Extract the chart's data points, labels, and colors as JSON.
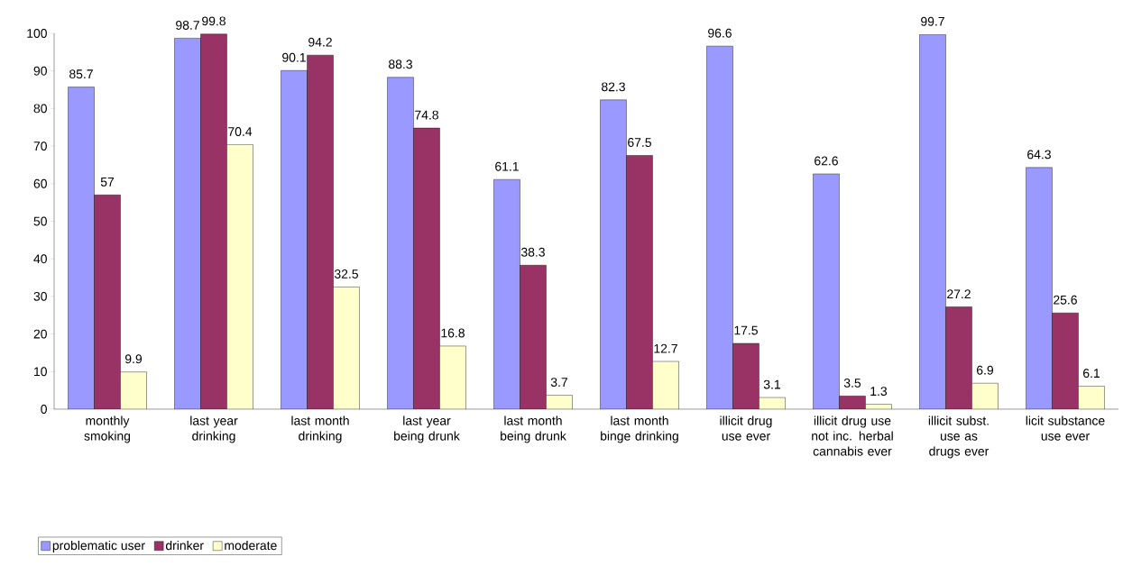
{
  "chart_data": {
    "type": "bar",
    "categories": [
      "monthly smoking",
      "last year drinking",
      "last month drinking",
      "last year being drunk",
      "last month being drunk",
      "last month binge drinking",
      "illicit drug use ever",
      "illicit drug use not inc. herbal cannabis ever",
      "illicit subst. use as drugs ever",
      "licit substance use ever"
    ],
    "series": [
      {
        "name": "problematic user",
        "color": "#9999ff",
        "values": [
          85.7,
          98.7,
          90.1,
          88.3,
          61.1,
          82.3,
          96.6,
          62.6,
          99.7,
          64.3
        ]
      },
      {
        "name": "drinker",
        "color": "#993366",
        "values": [
          57,
          99.8,
          94.2,
          74.8,
          38.3,
          67.5,
          17.5,
          3.5,
          27.2,
          25.6
        ]
      },
      {
        "name": "moderate",
        "color": "#ffffcc",
        "values": [
          9.9,
          70.4,
          32.5,
          16.8,
          3.7,
          12.7,
          3.1,
          1.3,
          6.9,
          6.1
        ]
      }
    ],
    "ylim": [
      0,
      100
    ],
    "yticks": [
      0,
      10,
      20,
      30,
      40,
      50,
      60,
      70,
      80,
      90,
      100
    ],
    "data_labels": true,
    "grid": false,
    "legend": "bottom left"
  }
}
